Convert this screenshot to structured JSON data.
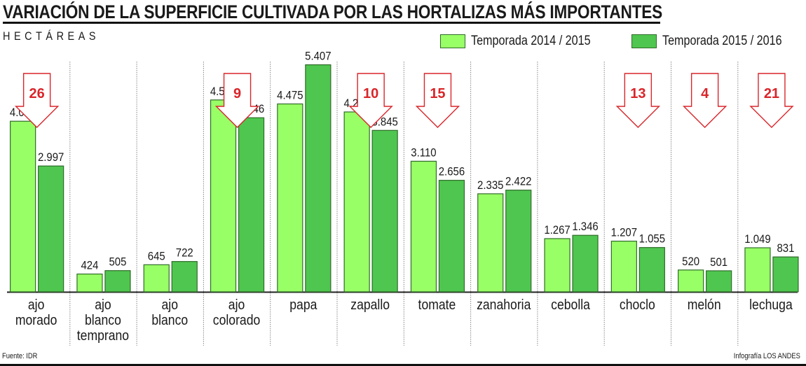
{
  "header": {
    "title": "VARIACIÓN DE LA SUPERFICIE CULTIVADA POR LAS HORTALIZAS MÁS IMPORTANTES",
    "subtitle": "HECTÁREAS"
  },
  "legend": [
    {
      "label": "Temporada 2014 / 2015",
      "color": "#99ff66"
    },
    {
      "label": "Temporada 2015 / 2016",
      "color": "#4fc64f"
    }
  ],
  "footer": {
    "source": "Fuente: IDR",
    "credit": "Infografía LOS ANDES"
  },
  "colors": {
    "series1": "#99ff66",
    "series2": "#4fc64f",
    "bar_border": "#2f6b2a",
    "arrow": "#d9252a",
    "separator": "#888888",
    "baseline": "#222222"
  },
  "chart_data": {
    "type": "bar",
    "title": "VARIACIÓN DE LA SUPERFICIE CULTIVADA POR LAS HORTALIZAS MÁS IMPORTANTES",
    "ylabel": "HECTÁREAS",
    "xlabel": "",
    "ylim": [
      0,
      5700
    ],
    "grid": false,
    "legend_position": "top-right",
    "categories": [
      [
        "ajo",
        "morado"
      ],
      [
        "ajo",
        "blanco",
        "temprano"
      ],
      [
        "ajo",
        "blanco"
      ],
      [
        "ajo",
        "colorado"
      ],
      [
        "papa"
      ],
      [
        "zapallo"
      ],
      [
        "tomate"
      ],
      [
        "zanahoria"
      ],
      [
        "cebolla"
      ],
      [
        "choclo"
      ],
      [
        "melón"
      ],
      [
        "lechuga"
      ]
    ],
    "series": [
      {
        "name": "Temporada 2014 / 2015",
        "values": [
          4063,
          424,
          645,
          4570,
          4475,
          4284,
          3110,
          2335,
          1267,
          1207,
          520,
          1049
        ],
        "labels": [
          "4.063",
          "424",
          "645",
          "4.570",
          "4.475",
          "4.284",
          "3.110",
          "2.335",
          "1.267",
          "1.207",
          "520",
          "1.049"
        ]
      },
      {
        "name": "Temporada 2015 / 2016",
        "values": [
          2997,
          505,
          722,
          4146,
          5407,
          3845,
          2656,
          2422,
          1346,
          1055,
          501,
          831
        ],
        "labels": [
          "2.997",
          "505",
          "722",
          "4.146",
          "5.407",
          "3.845",
          "2.656",
          "2.422",
          "1.346",
          "1.055",
          "501",
          "831"
        ]
      }
    ],
    "annotations": [
      {
        "category_index": 0,
        "type": "decrease-arrow",
        "text": "26"
      },
      {
        "category_index": 3,
        "type": "decrease-arrow",
        "text": "9"
      },
      {
        "category_index": 5,
        "type": "decrease-arrow",
        "text": "10"
      },
      {
        "category_index": 6,
        "type": "decrease-arrow",
        "text": "15"
      },
      {
        "category_index": 9,
        "type": "decrease-arrow",
        "text": "13"
      },
      {
        "category_index": 10,
        "type": "decrease-arrow",
        "text": "4"
      },
      {
        "category_index": 11,
        "type": "decrease-arrow",
        "text": "21"
      }
    ]
  }
}
